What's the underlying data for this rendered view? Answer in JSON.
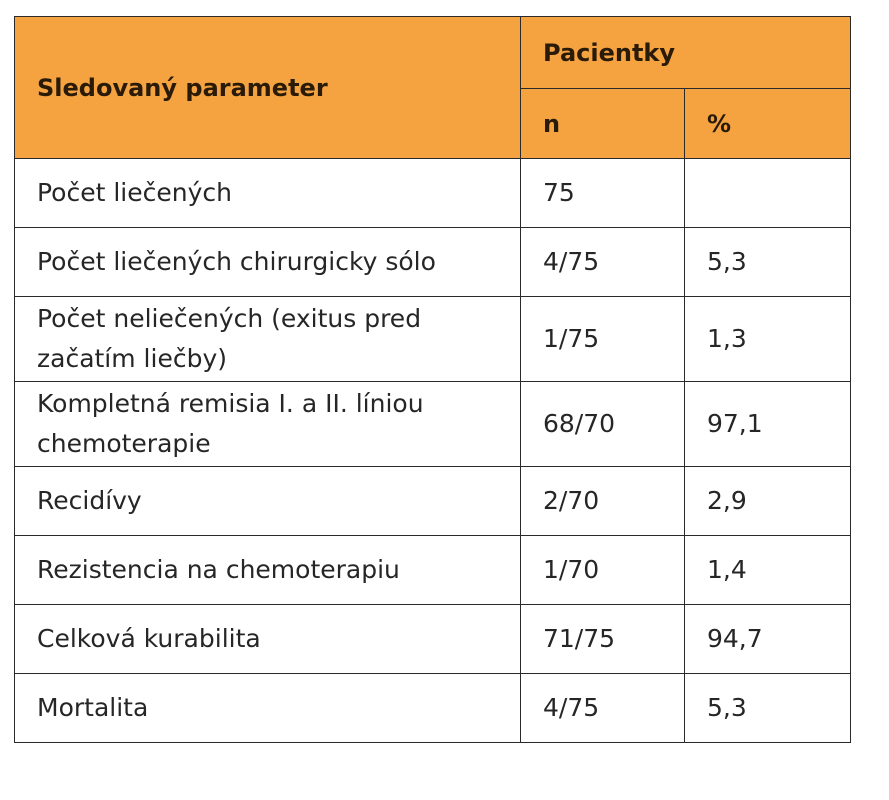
{
  "table": {
    "header": {
      "param_label": "Sledovaný parameter",
      "group_label": "Pacientky",
      "n_label": "n",
      "pct_label": "%"
    },
    "rows": [
      {
        "parameter": "Počet liečených",
        "n": "75",
        "pct": ""
      },
      {
        "parameter": "Počet liečených chirurgicky sólo",
        "n": "4/75",
        "pct": "5,3"
      },
      {
        "parameter": "Počet neliečených (exitus pred začatím liečby)",
        "n": "1/75",
        "pct": "1,3"
      },
      {
        "parameter": "Kompletná remisia I. a II. líniou chemoterapie",
        "n": "68/70",
        "pct": "97,1"
      },
      {
        "parameter": "Recidívy",
        "n": "2/70",
        "pct": "2,9"
      },
      {
        "parameter": "Rezistencia na chemoterapiu",
        "n": "1/70",
        "pct": "1,4"
      },
      {
        "parameter": "Celková kurabilita",
        "n": "71/75",
        "pct": "94,7"
      },
      {
        "parameter": "Mortalita",
        "n": "4/75",
        "pct": "5,3"
      }
    ]
  },
  "colors": {
    "header_bg": "#f4a340",
    "border": "#2a2a2a",
    "text": "#262626"
  }
}
